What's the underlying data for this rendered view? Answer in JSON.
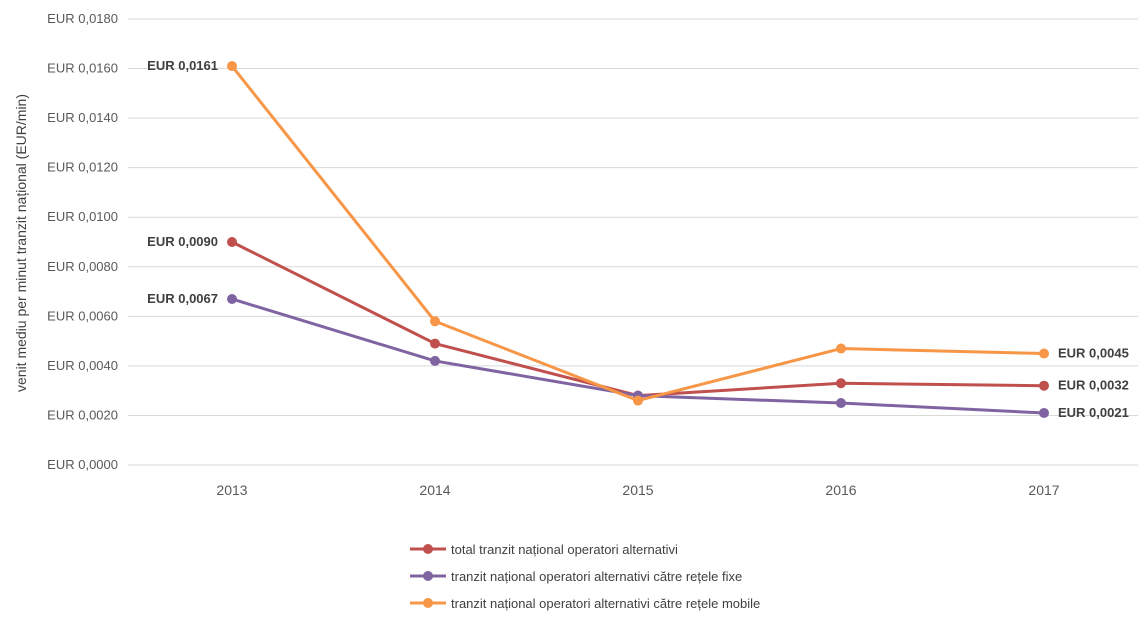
{
  "chart_data": {
    "type": "line",
    "ylabel": "venit mediu per minut tranzit național (EUR/min)",
    "xlabel": "",
    "categories": [
      "2013",
      "2014",
      "2015",
      "2016",
      "2017"
    ],
    "ylim": [
      0,
      0.018
    ],
    "yticks": [
      0,
      0.002,
      0.004,
      0.006,
      0.008,
      0.01,
      0.012,
      0.014,
      0.016,
      0.018
    ],
    "ytick_labels": [
      "EUR 0,0000",
      "EUR 0,0020",
      "EUR 0,0040",
      "EUR 0,0060",
      "EUR 0,0080",
      "EUR 0,0100",
      "EUR 0,0120",
      "EUR 0,0140",
      "EUR 0,0160",
      "EUR 0,0180"
    ],
    "grid": "horizontal",
    "legend_position": "bottom",
    "series": [
      {
        "name": "total tranzit național operatori alternativi",
        "color": "#c0504d",
        "values": [
          0.009,
          0.0049,
          0.0028,
          0.0033,
          0.0032
        ],
        "labels": [
          {
            "index": 0,
            "text": "EUR 0,0090"
          },
          {
            "index": 4,
            "text": "EUR 0,0032"
          }
        ]
      },
      {
        "name": "tranzit național operatori alternativi către rețele fixe",
        "color": "#8064a2",
        "values": [
          0.0067,
          0.0042,
          0.0028,
          0.0025,
          0.0021
        ],
        "labels": [
          {
            "index": 0,
            "text": "EUR 0,0067"
          },
          {
            "index": 4,
            "text": "EUR 0,0021"
          }
        ]
      },
      {
        "name": "tranzit național operatori alternativi către rețele mobile",
        "color": "#f79646",
        "values": [
          0.0161,
          0.0058,
          0.0026,
          0.0047,
          0.0045
        ],
        "labels": [
          {
            "index": 0,
            "text": "EUR 0,0161"
          },
          {
            "index": 4,
            "text": "EUR 0,0045"
          }
        ]
      }
    ]
  }
}
